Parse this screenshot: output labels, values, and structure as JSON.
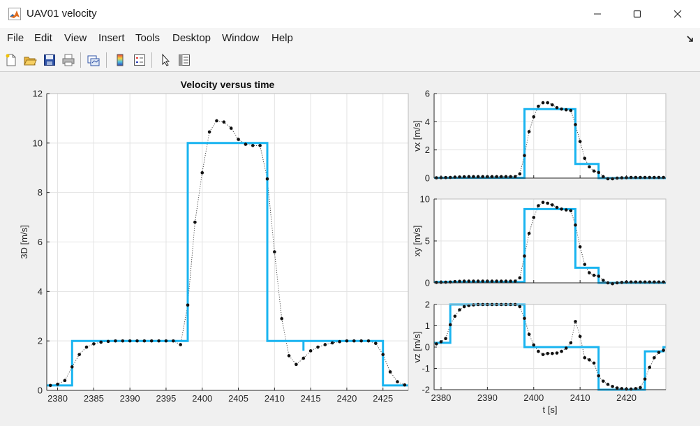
{
  "window": {
    "title": "UAV01 velocity",
    "icon": "matlab-icon",
    "controls": [
      "minimize-icon",
      "maximize-icon",
      "close-icon"
    ]
  },
  "menu": {
    "items": [
      "File",
      "Edit",
      "View",
      "Insert",
      "Tools",
      "Desktop",
      "Window",
      "Help"
    ]
  },
  "toolbar": {
    "buttons": [
      "new-figure-icon",
      "open-file-icon",
      "save-icon",
      "print-icon",
      "link-plot-icon",
      "insert-colorbar-icon",
      "insert-legend-icon",
      "edit-plot-arrow-icon",
      "property-inspector-icon"
    ]
  },
  "colors": {
    "step": "#19b4f0",
    "dots": "#111111",
    "grid": "#e3e3e3"
  },
  "chart_data": [
    {
      "type": "line",
      "title": "Velocity versus time",
      "xlabel": "",
      "ylabel": "3D [m/s]",
      "xlim": [
        2378.5,
        2428.5
      ],
      "ylim": [
        0,
        12
      ],
      "xticks": [
        2380,
        2385,
        2390,
        2395,
        2400,
        2405,
        2410,
        2415,
        2420,
        2425
      ],
      "yticks": [
        0,
        2,
        4,
        6,
        8,
        10,
        12
      ],
      "grid": true,
      "series": [
        {
          "style": "step",
          "x": [
            2378.5,
            2382,
            2382,
            2398,
            2398,
            2409,
            2409,
            2414,
            2414,
            2414,
            2425,
            2425,
            2428.5
          ],
          "y": [
            0.2,
            0.2,
            2,
            2,
            10,
            10,
            2,
            2,
            1.6,
            2,
            2,
            0.2,
            0.2
          ]
        },
        {
          "style": "dotted-markers",
          "x": [
            2379,
            2380,
            2381,
            2382,
            2383,
            2384,
            2385,
            2386,
            2387,
            2388,
            2389,
            2390,
            2391,
            2392,
            2393,
            2394,
            2395,
            2396,
            2397,
            2398,
            2399,
            2400,
            2401,
            2402,
            2403,
            2404,
            2405,
            2406,
            2407,
            2408,
            2409,
            2410,
            2411,
            2412,
            2413,
            2414,
            2415,
            2416,
            2417,
            2418,
            2419,
            2420,
            2421,
            2422,
            2423,
            2424,
            2425,
            2426,
            2427,
            2428
          ],
          "y": [
            0.2,
            0.25,
            0.4,
            0.95,
            1.45,
            1.75,
            1.88,
            1.95,
            1.98,
            2,
            2,
            2,
            2,
            2,
            2,
            2,
            2,
            2,
            1.85,
            3.45,
            6.8,
            8.8,
            10.45,
            10.9,
            10.85,
            10.6,
            10.15,
            9.95,
            9.9,
            9.9,
            8.55,
            5.6,
            2.9,
            1.4,
            1.05,
            1.3,
            1.6,
            1.75,
            1.85,
            1.92,
            1.97,
            2,
            2,
            2,
            2,
            1.9,
            1.45,
            0.75,
            0.35,
            0.22
          ]
        }
      ]
    },
    {
      "type": "line",
      "title": "",
      "xlabel": "",
      "ylabel": "vx [m/s]",
      "xlim": [
        2378.5,
        2428.5
      ],
      "ylim": [
        0,
        6
      ],
      "yticks": [
        0,
        2,
        4,
        6
      ],
      "grid": true,
      "series": [
        {
          "style": "step",
          "x": [
            2378.5,
            2398,
            2398,
            2409,
            2409,
            2414,
            2414,
            2428.5
          ],
          "y": [
            0.02,
            0.02,
            4.9,
            4.9,
            1,
            1,
            0,
            0
          ]
        },
        {
          "style": "dotted-markers",
          "x": [
            2379,
            2380,
            2381,
            2382,
            2383,
            2384,
            2385,
            2386,
            2387,
            2388,
            2389,
            2390,
            2391,
            2392,
            2393,
            2394,
            2395,
            2396,
            2397,
            2398,
            2399,
            2400,
            2401,
            2402,
            2403,
            2404,
            2405,
            2406,
            2407,
            2408,
            2409,
            2410,
            2411,
            2412,
            2413,
            2414,
            2415,
            2416,
            2417,
            2418,
            2419,
            2420,
            2421,
            2422,
            2423,
            2424,
            2425,
            2426,
            2427,
            2428
          ],
          "y": [
            0.02,
            0.03,
            0.04,
            0.05,
            0.07,
            0.08,
            0.09,
            0.1,
            0.1,
            0.1,
            0.1,
            0.1,
            0.1,
            0.1,
            0.1,
            0.1,
            0.1,
            0.1,
            0.3,
            1.6,
            3.3,
            4.35,
            5.1,
            5.35,
            5.35,
            5.2,
            5,
            4.9,
            4.85,
            4.8,
            3.8,
            2.6,
            1.4,
            0.8,
            0.5,
            0.4,
            0.1,
            -0.05,
            -0.05,
            0,
            0.02,
            0.03,
            0.05,
            0.05,
            0.05,
            0.05,
            0.05,
            0.05,
            0.05,
            0.05
          ]
        }
      ]
    },
    {
      "type": "line",
      "title": "",
      "xlabel": "",
      "ylabel": "xy [m/s]",
      "xlim": [
        2378.5,
        2428.5
      ],
      "ylim": [
        0,
        10
      ],
      "yticks": [
        0,
        5,
        10
      ],
      "grid": true,
      "series": [
        {
          "style": "step",
          "x": [
            2378.5,
            2398,
            2398,
            2409,
            2409,
            2414,
            2414,
            2428.5
          ],
          "y": [
            0.1,
            0.1,
            8.8,
            8.8,
            1.8,
            1.8,
            0,
            0
          ]
        },
        {
          "style": "dotted-markers",
          "x": [
            2379,
            2380,
            2381,
            2382,
            2383,
            2384,
            2385,
            2386,
            2387,
            2388,
            2389,
            2390,
            2391,
            2392,
            2393,
            2394,
            2395,
            2396,
            2397,
            2398,
            2399,
            2400,
            2401,
            2402,
            2403,
            2404,
            2405,
            2406,
            2407,
            2408,
            2409,
            2410,
            2411,
            2412,
            2413,
            2414,
            2415,
            2416,
            2417,
            2418,
            2419,
            2420,
            2421,
            2422,
            2423,
            2424,
            2425,
            2426,
            2427,
            2428
          ],
          "y": [
            0.05,
            0.06,
            0.08,
            0.1,
            0.15,
            0.18,
            0.2,
            0.2,
            0.2,
            0.2,
            0.2,
            0.2,
            0.2,
            0.2,
            0.2,
            0.2,
            0.2,
            0.2,
            0.6,
            3.2,
            5.9,
            7.8,
            9.2,
            9.6,
            9.5,
            9.3,
            9,
            8.8,
            8.7,
            8.6,
            6.9,
            4.3,
            2.2,
            1.2,
            0.9,
            0.8,
            0.3,
            0,
            -0.1,
            0,
            0.05,
            0.1,
            0.1,
            0.1,
            0.1,
            0.1,
            0.1,
            0.1,
            0.1,
            0.1
          ]
        }
      ]
    },
    {
      "type": "line",
      "title": "",
      "xlabel": "t [s]",
      "ylabel": "vz [m/s]",
      "xlim": [
        2378.5,
        2428.5
      ],
      "ylim": [
        -2,
        2
      ],
      "xticks": [
        2380,
        2390,
        2400,
        2410,
        2420
      ],
      "yticks": [
        -2,
        -1,
        0,
        1,
        2
      ],
      "grid": true,
      "series": [
        {
          "style": "step",
          "x": [
            2378.5,
            2380,
            2380,
            2382,
            2382,
            2398,
            2398,
            2409,
            2409,
            2414,
            2414,
            2424,
            2424,
            2428,
            2428,
            2428.5
          ],
          "y": [
            0.2,
            0.2,
            0.2,
            0.2,
            2,
            2,
            0,
            0,
            0,
            0,
            -2,
            -2,
            -0.2,
            -0.2,
            0,
            0
          ]
        },
        {
          "style": "dotted-markers",
          "x": [
            2379,
            2380,
            2381,
            2382,
            2383,
            2384,
            2385,
            2386,
            2387,
            2388,
            2389,
            2390,
            2391,
            2392,
            2393,
            2394,
            2395,
            2396,
            2397,
            2398,
            2399,
            2400,
            2401,
            2402,
            2403,
            2404,
            2405,
            2406,
            2407,
            2408,
            2409,
            2410,
            2411,
            2412,
            2413,
            2414,
            2415,
            2416,
            2417,
            2418,
            2419,
            2420,
            2421,
            2422,
            2423,
            2424,
            2425,
            2426,
            2427,
            2428
          ],
          "y": [
            0.15,
            0.25,
            0.4,
            1.05,
            1.45,
            1.75,
            1.9,
            1.95,
            1.98,
            2,
            2,
            2,
            2,
            2,
            2,
            2,
            2,
            2,
            1.9,
            1.35,
            0.6,
            0.1,
            -0.2,
            -0.35,
            -0.3,
            -0.3,
            -0.28,
            -0.2,
            -0.05,
            0.2,
            1.2,
            0.5,
            -0.5,
            -0.6,
            -0.75,
            -1.35,
            -1.6,
            -1.75,
            -1.85,
            -1.92,
            -1.95,
            -1.97,
            -1.97,
            -1.95,
            -1.9,
            -1.5,
            -0.95,
            -0.5,
            -0.25,
            -0.15
          ]
        }
      ]
    }
  ]
}
